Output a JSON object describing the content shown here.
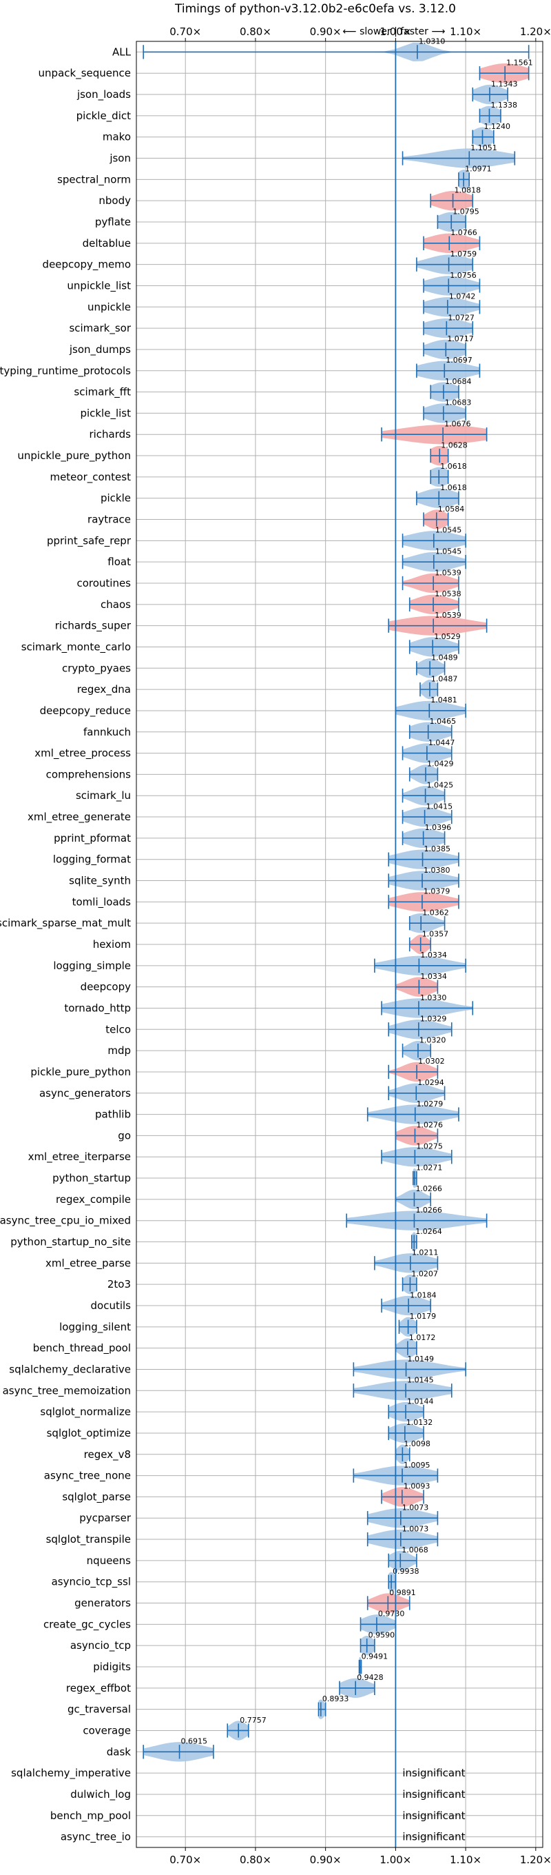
{
  "chart_data": {
    "type": "violin",
    "title": "Timings of python-v3.12.0b2-e6c0efa vs. 3.12.0",
    "subtitle": "⟵ slower  |  faster ⟶",
    "xlim": [
      0.63,
      1.21
    ],
    "xticks": [
      0.7,
      0.8,
      0.9,
      1.0,
      1.1,
      1.2
    ],
    "xtick_labels": [
      "0.70×",
      "0.80×",
      "0.90×",
      "1.00×",
      "1.10×",
      "1.20×"
    ],
    "reference_line": 1.0,
    "grid": true,
    "colors": {
      "faster": "#a9c8e6",
      "slower": "#f4aaaa",
      "line": "#1f6db3",
      "grid": "#b0b0b0"
    },
    "benchmarks": [
      {
        "name": "ALL",
        "value": 1.031,
        "label": "1.0310",
        "min": 0.64,
        "max": 1.19,
        "spread": 0.02,
        "color": "faster"
      },
      {
        "name": "unpack_sequence",
        "value": 1.1561,
        "label": "1.1561",
        "min": 1.12,
        "max": 1.19,
        "spread": 0.03,
        "color": "slower"
      },
      {
        "name": "json_loads",
        "value": 1.1343,
        "label": "1.1343",
        "min": 1.11,
        "max": 1.16,
        "spread": 0.02,
        "color": "faster"
      },
      {
        "name": "pickle_dict",
        "value": 1.1338,
        "label": "1.1338",
        "min": 1.12,
        "max": 1.15,
        "spread": 0.015,
        "color": "faster"
      },
      {
        "name": "mako",
        "value": 1.124,
        "label": "1.1240",
        "min": 1.11,
        "max": 1.14,
        "spread": 0.015,
        "color": "faster"
      },
      {
        "name": "json",
        "value": 1.1051,
        "label": "1.1051",
        "min": 1.01,
        "max": 1.17,
        "spread": 0.05,
        "color": "faster"
      },
      {
        "name": "spectral_norm",
        "value": 1.0971,
        "label": "1.0971",
        "min": 1.09,
        "max": 1.105,
        "spread": 0.01,
        "color": "faster"
      },
      {
        "name": "nbody",
        "value": 1.0818,
        "label": "1.0818",
        "min": 1.05,
        "max": 1.11,
        "spread": 0.025,
        "color": "slower"
      },
      {
        "name": "pyflate",
        "value": 1.0795,
        "label": "1.0795",
        "min": 1.06,
        "max": 1.1,
        "spread": 0.02,
        "color": "faster"
      },
      {
        "name": "deltablue",
        "value": 1.0766,
        "label": "1.0766",
        "min": 1.04,
        "max": 1.12,
        "spread": 0.03,
        "color": "slower"
      },
      {
        "name": "deepcopy_memo",
        "value": 1.0759,
        "label": "1.0759",
        "min": 1.03,
        "max": 1.11,
        "spread": 0.03,
        "color": "faster"
      },
      {
        "name": "unpickle_list",
        "value": 1.0756,
        "label": "1.0756",
        "min": 1.04,
        "max": 1.12,
        "spread": 0.03,
        "color": "faster"
      },
      {
        "name": "unpickle",
        "value": 1.0742,
        "label": "1.0742",
        "min": 1.04,
        "max": 1.12,
        "spread": 0.03,
        "color": "faster"
      },
      {
        "name": "scimark_sor",
        "value": 1.0727,
        "label": "1.0727",
        "min": 1.04,
        "max": 1.11,
        "spread": 0.03,
        "color": "faster"
      },
      {
        "name": "json_dumps",
        "value": 1.0717,
        "label": "1.0717",
        "min": 1.04,
        "max": 1.1,
        "spread": 0.025,
        "color": "faster"
      },
      {
        "name": "typing_runtime_protocols",
        "value": 1.0697,
        "label": "1.0697",
        "min": 1.03,
        "max": 1.12,
        "spread": 0.035,
        "color": "faster"
      },
      {
        "name": "scimark_fft",
        "value": 1.0684,
        "label": "1.0684",
        "min": 1.05,
        "max": 1.09,
        "spread": 0.02,
        "color": "faster"
      },
      {
        "name": "pickle_list",
        "value": 1.0683,
        "label": "1.0683",
        "min": 1.04,
        "max": 1.1,
        "spread": 0.025,
        "color": "faster"
      },
      {
        "name": "richards",
        "value": 1.0676,
        "label": "1.0676",
        "min": 0.98,
        "max": 1.13,
        "spread": 0.06,
        "color": "slower"
      },
      {
        "name": "unpickle_pure_python",
        "value": 1.0628,
        "label": "1.0628",
        "min": 1.05,
        "max": 1.075,
        "spread": 0.015,
        "color": "slower"
      },
      {
        "name": "meteor_contest",
        "value": 1.0618,
        "label": "1.0618",
        "min": 1.05,
        "max": 1.075,
        "spread": 0.015,
        "color": "faster"
      },
      {
        "name": "pickle",
        "value": 1.0618,
        "label": "1.0618",
        "min": 1.03,
        "max": 1.09,
        "spread": 0.025,
        "color": "faster"
      },
      {
        "name": "raytrace",
        "value": 1.0584,
        "label": "1.0584",
        "min": 1.04,
        "max": 1.075,
        "spread": 0.015,
        "color": "slower"
      },
      {
        "name": "pprint_safe_repr",
        "value": 1.0545,
        "label": "1.0545",
        "min": 1.01,
        "max": 1.1,
        "spread": 0.035,
        "color": "faster"
      },
      {
        "name": "float",
        "value": 1.0545,
        "label": "1.0545",
        "min": 1.01,
        "max": 1.1,
        "spread": 0.03,
        "color": "faster"
      },
      {
        "name": "coroutines",
        "value": 1.0539,
        "label": "1.0539",
        "min": 1.01,
        "max": 1.09,
        "spread": 0.025,
        "color": "slower"
      },
      {
        "name": "chaos",
        "value": 1.0538,
        "label": "1.0538",
        "min": 1.02,
        "max": 1.09,
        "spread": 0.025,
        "color": "slower"
      },
      {
        "name": "richards_super",
        "value": 1.0539,
        "label": "1.0539",
        "min": 0.99,
        "max": 1.13,
        "spread": 0.05,
        "color": "slower"
      },
      {
        "name": "scimark_monte_carlo",
        "value": 1.0529,
        "label": "1.0529",
        "min": 1.02,
        "max": 1.09,
        "spread": 0.025,
        "color": "faster"
      },
      {
        "name": "crypto_pyaes",
        "value": 1.0489,
        "label": "1.0489",
        "min": 1.03,
        "max": 1.07,
        "spread": 0.015,
        "color": "faster"
      },
      {
        "name": "regex_dna",
        "value": 1.0487,
        "label": "1.0487",
        "min": 1.035,
        "max": 1.06,
        "spread": 0.01,
        "color": "faster"
      },
      {
        "name": "deepcopy_reduce",
        "value": 1.0481,
        "label": "1.0481",
        "min": 1.0,
        "max": 1.1,
        "spread": 0.035,
        "color": "faster"
      },
      {
        "name": "fannkuch",
        "value": 1.0465,
        "label": "1.0465",
        "min": 1.02,
        "max": 1.08,
        "spread": 0.025,
        "color": "faster"
      },
      {
        "name": "xml_etree_process",
        "value": 1.0447,
        "label": "1.0447",
        "min": 1.01,
        "max": 1.08,
        "spread": 0.025,
        "color": "faster"
      },
      {
        "name": "comprehensions",
        "value": 1.0429,
        "label": "1.0429",
        "min": 1.02,
        "max": 1.06,
        "spread": 0.015,
        "color": "faster"
      },
      {
        "name": "scimark_lu",
        "value": 1.0425,
        "label": "1.0425",
        "min": 1.01,
        "max": 1.07,
        "spread": 0.02,
        "color": "faster"
      },
      {
        "name": "xml_etree_generate",
        "value": 1.0415,
        "label": "1.0415",
        "min": 1.01,
        "max": 1.08,
        "spread": 0.025,
        "color": "faster"
      },
      {
        "name": "pprint_pformat",
        "value": 1.0396,
        "label": "1.0396",
        "min": 1.01,
        "max": 1.07,
        "spread": 0.025,
        "color": "faster"
      },
      {
        "name": "logging_format",
        "value": 1.0385,
        "label": "1.0385",
        "min": 0.99,
        "max": 1.09,
        "spread": 0.035,
        "color": "faster"
      },
      {
        "name": "sqlite_synth",
        "value": 1.038,
        "label": "1.0380",
        "min": 0.99,
        "max": 1.09,
        "spread": 0.035,
        "color": "faster"
      },
      {
        "name": "tomli_loads",
        "value": 1.0379,
        "label": "1.0379",
        "min": 0.99,
        "max": 1.09,
        "spread": 0.035,
        "color": "slower"
      },
      {
        "name": "scimark_sparse_mat_mult",
        "value": 1.0362,
        "label": "1.0362",
        "min": 1.02,
        "max": 1.07,
        "spread": 0.02,
        "color": "faster"
      },
      {
        "name": "hexiom",
        "value": 1.0357,
        "label": "1.0357",
        "min": 1.02,
        "max": 1.05,
        "spread": 0.01,
        "color": "slower"
      },
      {
        "name": "logging_simple",
        "value": 1.0334,
        "label": "1.0334",
        "min": 0.97,
        "max": 1.1,
        "spread": 0.04,
        "color": "faster"
      },
      {
        "name": "deepcopy",
        "value": 1.0334,
        "label": "1.0334",
        "min": 1.0,
        "max": 1.06,
        "spread": 0.02,
        "color": "slower"
      },
      {
        "name": "tornado_http",
        "value": 1.033,
        "label": "1.0330",
        "min": 0.98,
        "max": 1.11,
        "spread": 0.04,
        "color": "faster"
      },
      {
        "name": "telco",
        "value": 1.0329,
        "label": "1.0329",
        "min": 0.99,
        "max": 1.08,
        "spread": 0.03,
        "color": "faster"
      },
      {
        "name": "mdp",
        "value": 1.032,
        "label": "1.0320",
        "min": 1.01,
        "max": 1.05,
        "spread": 0.015,
        "color": "faster"
      },
      {
        "name": "pickle_pure_python",
        "value": 1.0302,
        "label": "1.0302",
        "min": 0.99,
        "max": 1.06,
        "spread": 0.02,
        "color": "slower"
      },
      {
        "name": "async_generators",
        "value": 1.0294,
        "label": "1.0294",
        "min": 0.99,
        "max": 1.07,
        "spread": 0.025,
        "color": "faster"
      },
      {
        "name": "pathlib",
        "value": 1.0279,
        "label": "1.0279",
        "min": 0.96,
        "max": 1.09,
        "spread": 0.04,
        "color": "faster"
      },
      {
        "name": "go",
        "value": 1.0276,
        "label": "1.0276",
        "min": 1.0,
        "max": 1.06,
        "spread": 0.02,
        "color": "slower"
      },
      {
        "name": "xml_etree_iterparse",
        "value": 1.0275,
        "label": "1.0275",
        "min": 0.98,
        "max": 1.08,
        "spread": 0.035,
        "color": "faster"
      },
      {
        "name": "python_startup",
        "value": 1.0271,
        "label": "1.0271",
        "min": 1.025,
        "max": 1.03,
        "spread": 0.004,
        "color": "faster"
      },
      {
        "name": "regex_compile",
        "value": 1.0266,
        "label": "1.0266",
        "min": 1.0,
        "max": 1.05,
        "spread": 0.015,
        "color": "faster"
      },
      {
        "name": "async_tree_cpu_io_mixed",
        "value": 1.0266,
        "label": "1.0266",
        "min": 0.93,
        "max": 1.13,
        "spread": 0.06,
        "color": "faster"
      },
      {
        "name": "python_startup_no_site",
        "value": 1.0264,
        "label": "1.0264",
        "min": 1.023,
        "max": 1.03,
        "spread": 0.004,
        "color": "faster"
      },
      {
        "name": "xml_etree_parse",
        "value": 1.0211,
        "label": "1.0211",
        "min": 0.97,
        "max": 1.06,
        "spread": 0.03,
        "color": "faster"
      },
      {
        "name": "2to3",
        "value": 1.0207,
        "label": "1.0207",
        "min": 1.01,
        "max": 1.03,
        "spread": 0.01,
        "color": "faster"
      },
      {
        "name": "docutils",
        "value": 1.0184,
        "label": "1.0184",
        "min": 0.98,
        "max": 1.05,
        "spread": 0.025,
        "color": "faster"
      },
      {
        "name": "logging_silent",
        "value": 1.0179,
        "label": "1.0179",
        "min": 1.005,
        "max": 1.03,
        "spread": 0.01,
        "color": "faster"
      },
      {
        "name": "bench_thread_pool",
        "value": 1.0172,
        "label": "1.0172",
        "min": 1.0,
        "max": 1.03,
        "spread": 0.012,
        "color": "faster"
      },
      {
        "name": "sqlalchemy_declarative",
        "value": 1.0149,
        "label": "1.0149",
        "min": 0.94,
        "max": 1.1,
        "spread": 0.045,
        "color": "faster"
      },
      {
        "name": "async_tree_memoization",
        "value": 1.0145,
        "label": "1.0145",
        "min": 0.94,
        "max": 1.08,
        "spread": 0.045,
        "color": "faster"
      },
      {
        "name": "sqlglot_normalize",
        "value": 1.0144,
        "label": "1.0144",
        "min": 0.99,
        "max": 1.04,
        "spread": 0.02,
        "color": "faster"
      },
      {
        "name": "sqlglot_optimize",
        "value": 1.0132,
        "label": "1.0132",
        "min": 0.99,
        "max": 1.04,
        "spread": 0.02,
        "color": "faster"
      },
      {
        "name": "regex_v8",
        "value": 1.0098,
        "label": "1.0098",
        "min": 1.0,
        "max": 1.02,
        "spread": 0.008,
        "color": "faster"
      },
      {
        "name": "async_tree_none",
        "value": 1.0095,
        "label": "1.0095",
        "min": 0.94,
        "max": 1.06,
        "spread": 0.04,
        "color": "faster"
      },
      {
        "name": "sqlglot_parse",
        "value": 1.0093,
        "label": "1.0093",
        "min": 0.98,
        "max": 1.04,
        "spread": 0.02,
        "color": "slower"
      },
      {
        "name": "pycparser",
        "value": 1.0073,
        "label": "1.0073",
        "min": 0.96,
        "max": 1.06,
        "spread": 0.035,
        "color": "faster"
      },
      {
        "name": "sqlglot_transpile",
        "value": 1.0073,
        "label": "1.0073",
        "min": 0.96,
        "max": 1.06,
        "spread": 0.035,
        "color": "faster"
      },
      {
        "name": "nqueens",
        "value": 1.0068,
        "label": "1.0068",
        "min": 0.99,
        "max": 1.03,
        "spread": 0.015,
        "color": "faster"
      },
      {
        "name": "asyncio_tcp_ssl",
        "value": 0.9938,
        "label": "0.9938",
        "min": 0.99,
        "max": 1.0,
        "spread": 0.006,
        "color": "faster"
      },
      {
        "name": "generators",
        "value": 0.9891,
        "label": "0.9891",
        "min": 0.96,
        "max": 1.02,
        "spread": 0.02,
        "color": "slower"
      },
      {
        "name": "create_gc_cycles",
        "value": 0.973,
        "label": "0.9730",
        "min": 0.95,
        "max": 1.0,
        "spread": 0.02,
        "color": "faster"
      },
      {
        "name": "asyncio_tcp",
        "value": 0.959,
        "label": "0.9590",
        "min": 0.95,
        "max": 0.97,
        "spread": 0.01,
        "color": "faster"
      },
      {
        "name": "pidigits",
        "value": 0.9491,
        "label": "0.9491",
        "min": 0.948,
        "max": 0.951,
        "spread": 0.003,
        "color": "faster"
      },
      {
        "name": "regex_effbot",
        "value": 0.9428,
        "label": "0.9428",
        "min": 0.92,
        "max": 0.97,
        "spread": 0.02,
        "color": "faster"
      },
      {
        "name": "gc_traversal",
        "value": 0.8933,
        "label": "0.8933",
        "min": 0.89,
        "max": 0.9,
        "spread": 0.006,
        "color": "faster"
      },
      {
        "name": "coverage",
        "value": 0.7757,
        "label": "0.7757",
        "min": 0.76,
        "max": 0.79,
        "spread": 0.012,
        "color": "faster"
      },
      {
        "name": "dask",
        "value": 0.6915,
        "label": "0.6915",
        "min": 0.64,
        "max": 0.74,
        "spread": 0.035,
        "color": "faster"
      },
      {
        "name": "sqlalchemy_imperative",
        "insignificant": true,
        "label": "insignificant"
      },
      {
        "name": "dulwich_log",
        "insignificant": true,
        "label": "insignificant"
      },
      {
        "name": "bench_mp_pool",
        "insignificant": true,
        "label": "insignificant"
      },
      {
        "name": "async_tree_io",
        "insignificant": true,
        "label": "insignificant"
      }
    ]
  }
}
